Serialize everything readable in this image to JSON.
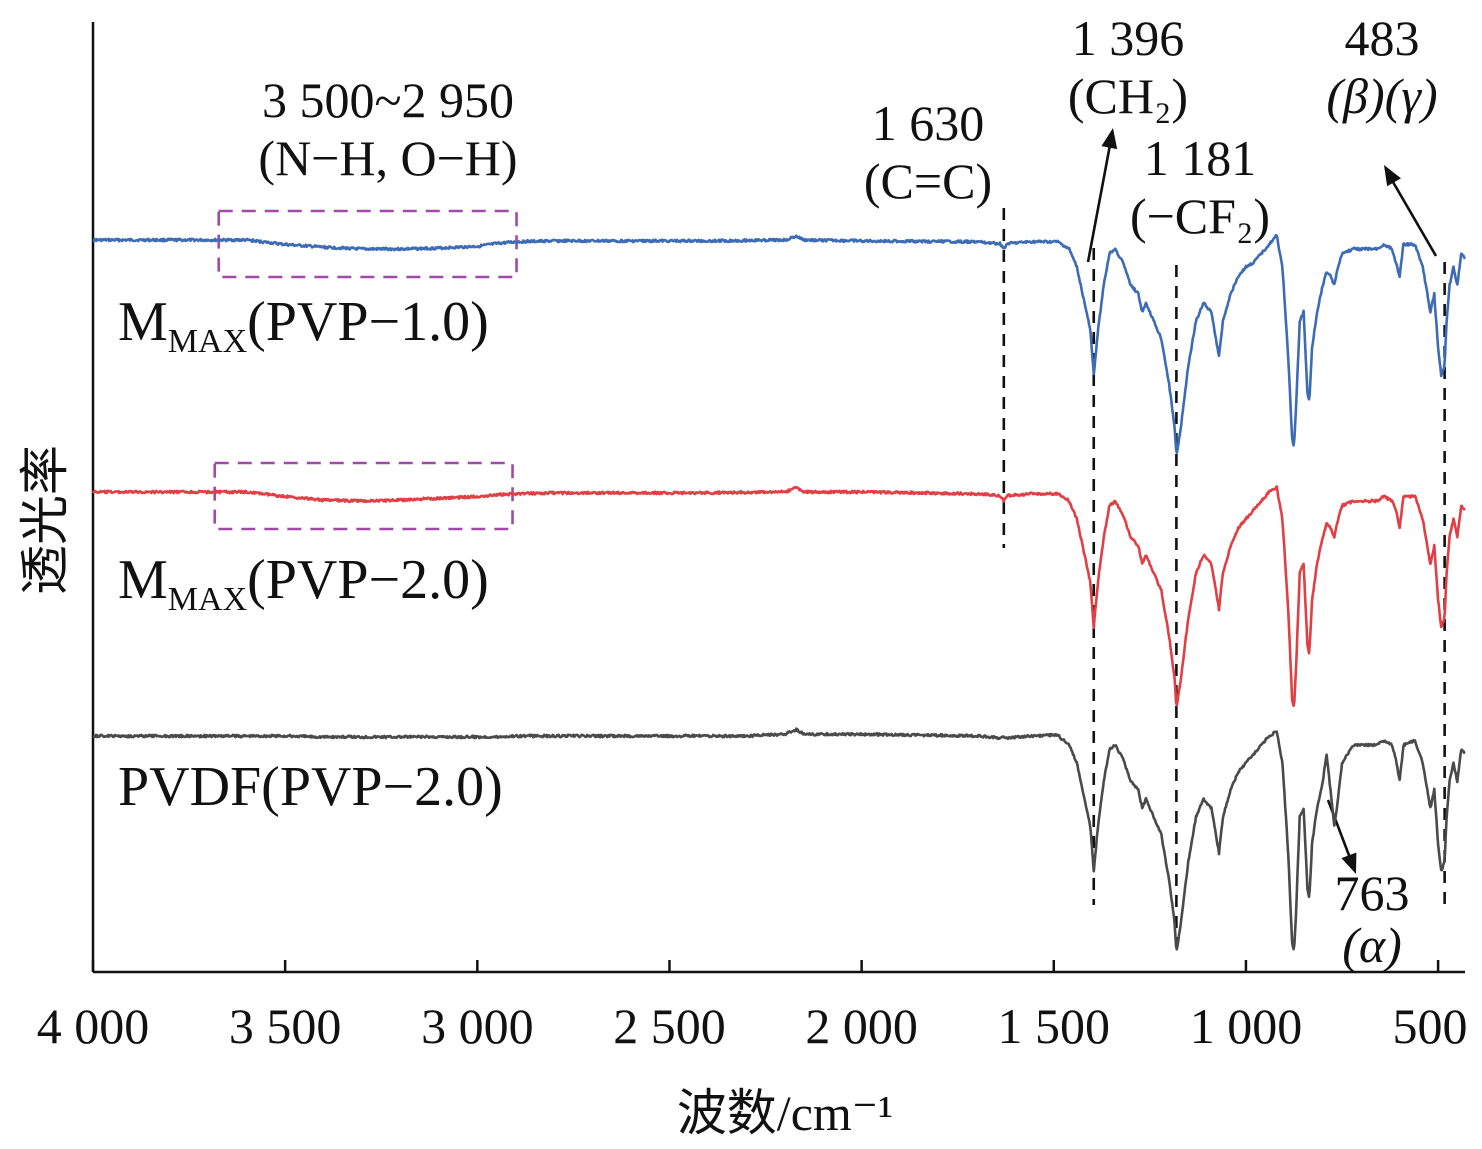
{
  "chart_data": {
    "type": "line",
    "title": "",
    "xlabel": "波数/cm⁻¹",
    "ylabel": "透光率",
    "xlim": [
      4000,
      430
    ],
    "x_reversed": true,
    "xticks": [
      4000,
      3500,
      3000,
      2500,
      2000,
      1500,
      1000,
      500
    ],
    "xtick_labels": [
      "4 000",
      "3 500",
      "3 000",
      "2 500",
      "2 000",
      "1 500",
      "1 000",
      "500"
    ],
    "y_ticks_shown": false,
    "grid": false,
    "series": [
      {
        "label_main": "M",
        "label_sub": "MAX",
        "label_rest": "(PVP−1.0)",
        "color": "#3d6cb5",
        "offset": 1.0,
        "broad_band_depth": 0.1,
        "points": [
          [
            4000,
            0
          ],
          [
            3700,
            0
          ],
          [
            3600,
            0
          ],
          [
            3500,
            0.05
          ],
          [
            3400,
            0.08
          ],
          [
            3300,
            0.1
          ],
          [
            3200,
            0.1
          ],
          [
            3100,
            0.09
          ],
          [
            3000,
            0.07
          ],
          [
            2950,
            0.04
          ],
          [
            2900,
            0.02
          ],
          [
            2800,
            0.01
          ],
          [
            2400,
            0.01
          ],
          [
            2200,
            0.0
          ],
          [
            2170,
            -0.04
          ],
          [
            2150,
            0.0
          ],
          [
            2000,
            0.01
          ],
          [
            1700,
            0.02
          ],
          [
            1640,
            0.04
          ],
          [
            1630,
            0.09
          ],
          [
            1620,
            0.04
          ],
          [
            1560,
            0.02
          ],
          [
            1490,
            0.02
          ],
          [
            1460,
            0.1
          ],
          [
            1440,
            0.3
          ],
          [
            1420,
            0.7
          ],
          [
            1405,
            1.0
          ],
          [
            1396,
            1.5
          ],
          [
            1385,
            1.0
          ],
          [
            1370,
            0.5
          ],
          [
            1355,
            0.15
          ],
          [
            1340,
            0.1
          ],
          [
            1320,
            0.25
          ],
          [
            1300,
            0.5
          ],
          [
            1280,
            0.6
          ],
          [
            1270,
            0.8
          ],
          [
            1260,
            0.7
          ],
          [
            1240,
            0.9
          ],
          [
            1220,
            1.1
          ],
          [
            1200,
            1.6
          ],
          [
            1185,
            2.1
          ],
          [
            1181,
            2.4
          ],
          [
            1170,
            2.1
          ],
          [
            1150,
            1.4
          ],
          [
            1130,
            0.9
          ],
          [
            1110,
            0.7
          ],
          [
            1090,
            0.8
          ],
          [
            1070,
            1.3
          ],
          [
            1060,
            0.9
          ],
          [
            1040,
            0.6
          ],
          [
            1020,
            0.4
          ],
          [
            1000,
            0.3
          ],
          [
            980,
            0.25
          ],
          [
            960,
            0.15
          ],
          [
            940,
            0.05
          ],
          [
            920,
            -0.05
          ],
          [
            905,
            0.3
          ],
          [
            890,
            1.3
          ],
          [
            880,
            2.2
          ],
          [
            875,
            2.3
          ],
          [
            870,
            1.9
          ],
          [
            860,
            0.9
          ],
          [
            850,
            0.8
          ],
          [
            840,
            1.7
          ],
          [
            835,
            1.8
          ],
          [
            828,
            1.2
          ],
          [
            815,
            0.8
          ],
          [
            800,
            0.5
          ],
          [
            790,
            0.35
          ],
          [
            780,
            0.4
          ],
          [
            770,
            0.5
          ],
          [
            763,
            0.35
          ],
          [
            750,
            0.15
          ],
          [
            720,
            0.1
          ],
          [
            690,
            0.1
          ],
          [
            660,
            0.1
          ],
          [
            640,
            0.05
          ],
          [
            620,
            0.1
          ],
          [
            610,
            0.25
          ],
          [
            600,
            0.4
          ],
          [
            590,
            0.05
          ],
          [
            560,
            0.05
          ],
          [
            540,
            0.3
          ],
          [
            520,
            0.8
          ],
          [
            510,
            0.6
          ],
          [
            500,
            1.2
          ],
          [
            492,
            1.5
          ],
          [
            483,
            1.4
          ],
          [
            478,
            0.9
          ],
          [
            470,
            0.5
          ],
          [
            460,
            0.3
          ],
          [
            450,
            0.5
          ],
          [
            440,
            0.15
          ],
          [
            430,
            0.2
          ]
        ]
      },
      {
        "label_main": "M",
        "label_sub": "MAX",
        "label_rest": "(PVP−2.0)",
        "color": "#e04045",
        "offset": 0.0,
        "broad_band_depth": 0.1,
        "points": [
          [
            4000,
            0
          ],
          [
            3700,
            0
          ],
          [
            3600,
            0
          ],
          [
            3500,
            0.05
          ],
          [
            3400,
            0.09
          ],
          [
            3300,
            0.1
          ],
          [
            3200,
            0.09
          ],
          [
            3100,
            0.07
          ],
          [
            3000,
            0.05
          ],
          [
            2950,
            0.03
          ],
          [
            2900,
            0.02
          ],
          [
            2800,
            0.01
          ],
          [
            2400,
            0.01
          ],
          [
            2200,
            0.0
          ],
          [
            2170,
            -0.05
          ],
          [
            2150,
            0.0
          ],
          [
            2000,
            0.0
          ],
          [
            1700,
            0.02
          ],
          [
            1640,
            0.04
          ],
          [
            1630,
            0.1
          ],
          [
            1620,
            0.04
          ],
          [
            1560,
            0.02
          ],
          [
            1490,
            0.02
          ],
          [
            1460,
            0.1
          ],
          [
            1440,
            0.3
          ],
          [
            1420,
            0.7
          ],
          [
            1405,
            1.0
          ],
          [
            1396,
            1.5
          ],
          [
            1385,
            1.0
          ],
          [
            1370,
            0.5
          ],
          [
            1355,
            0.15
          ],
          [
            1340,
            0.1
          ],
          [
            1320,
            0.25
          ],
          [
            1300,
            0.5
          ],
          [
            1280,
            0.6
          ],
          [
            1270,
            0.8
          ],
          [
            1260,
            0.7
          ],
          [
            1240,
            0.9
          ],
          [
            1220,
            1.1
          ],
          [
            1200,
            1.6
          ],
          [
            1185,
            2.1
          ],
          [
            1181,
            2.4
          ],
          [
            1170,
            2.1
          ],
          [
            1150,
            1.4
          ],
          [
            1130,
            0.9
          ],
          [
            1110,
            0.7
          ],
          [
            1090,
            0.8
          ],
          [
            1070,
            1.3
          ],
          [
            1060,
            0.9
          ],
          [
            1040,
            0.6
          ],
          [
            1020,
            0.4
          ],
          [
            1000,
            0.3
          ],
          [
            980,
            0.2
          ],
          [
            960,
            0.1
          ],
          [
            940,
            0.0
          ],
          [
            920,
            -0.05
          ],
          [
            905,
            0.3
          ],
          [
            890,
            1.3
          ],
          [
            880,
            2.3
          ],
          [
            875,
            2.4
          ],
          [
            870,
            2.0
          ],
          [
            860,
            0.9
          ],
          [
            850,
            0.8
          ],
          [
            840,
            1.7
          ],
          [
            835,
            1.8
          ],
          [
            828,
            1.2
          ],
          [
            815,
            0.8
          ],
          [
            800,
            0.5
          ],
          [
            790,
            0.35
          ],
          [
            780,
            0.4
          ],
          [
            770,
            0.5
          ],
          [
            763,
            0.35
          ],
          [
            750,
            0.15
          ],
          [
            720,
            0.1
          ],
          [
            690,
            0.1
          ],
          [
            660,
            0.1
          ],
          [
            640,
            0.05
          ],
          [
            620,
            0.1
          ],
          [
            610,
            0.2
          ],
          [
            600,
            0.4
          ],
          [
            590,
            0.05
          ],
          [
            560,
            0.05
          ],
          [
            540,
            0.3
          ],
          [
            520,
            0.8
          ],
          [
            510,
            0.6
          ],
          [
            500,
            1.2
          ],
          [
            492,
            1.5
          ],
          [
            483,
            1.4
          ],
          [
            478,
            0.9
          ],
          [
            470,
            0.5
          ],
          [
            460,
            0.3
          ],
          [
            450,
            0.5
          ],
          [
            440,
            0.15
          ],
          [
            430,
            0.2
          ]
        ]
      },
      {
        "label_main": "PVDF(PVP−2.0)",
        "label_sub": "",
        "label_rest": "",
        "color": "#4a4a4a",
        "offset": -1.0,
        "broad_band_depth": 0.0,
        "points": [
          [
            4000,
            0
          ],
          [
            3700,
            0
          ],
          [
            3600,
            0
          ],
          [
            3500,
            0.0
          ],
          [
            3400,
            0.01
          ],
          [
            3300,
            0.01
          ],
          [
            3200,
            0.01
          ],
          [
            3100,
            0.01
          ],
          [
            3000,
            0.01
          ],
          [
            2950,
            0.01
          ],
          [
            2900,
            0.0
          ],
          [
            2800,
            0.0
          ],
          [
            2400,
            0.0
          ],
          [
            2300,
            0.0
          ],
          [
            2200,
            -0.02
          ],
          [
            2170,
            -0.07
          ],
          [
            2150,
            -0.02
          ],
          [
            2000,
            -0.02
          ],
          [
            1700,
            0.0
          ],
          [
            1640,
            0.02
          ],
          [
            1630,
            0.02
          ],
          [
            1620,
            0.02
          ],
          [
            1560,
            0.0
          ],
          [
            1490,
            -0.01
          ],
          [
            1460,
            0.1
          ],
          [
            1440,
            0.3
          ],
          [
            1420,
            0.7
          ],
          [
            1405,
            1.0
          ],
          [
            1396,
            1.5
          ],
          [
            1385,
            1.0
          ],
          [
            1370,
            0.5
          ],
          [
            1355,
            0.15
          ],
          [
            1340,
            0.1
          ],
          [
            1320,
            0.25
          ],
          [
            1300,
            0.5
          ],
          [
            1280,
            0.6
          ],
          [
            1270,
            0.8
          ],
          [
            1260,
            0.7
          ],
          [
            1240,
            0.9
          ],
          [
            1220,
            1.1
          ],
          [
            1200,
            1.6
          ],
          [
            1185,
            2.1
          ],
          [
            1181,
            2.4
          ],
          [
            1170,
            2.1
          ],
          [
            1150,
            1.4
          ],
          [
            1130,
            0.9
          ],
          [
            1110,
            0.7
          ],
          [
            1090,
            0.8
          ],
          [
            1070,
            1.3
          ],
          [
            1060,
            0.9
          ],
          [
            1040,
            0.6
          ],
          [
            1020,
            0.4
          ],
          [
            1000,
            0.3
          ],
          [
            980,
            0.2
          ],
          [
            960,
            0.1
          ],
          [
            940,
            0.0
          ],
          [
            920,
            -0.05
          ],
          [
            905,
            0.3
          ],
          [
            890,
            1.3
          ],
          [
            880,
            2.3
          ],
          [
            875,
            2.4
          ],
          [
            870,
            2.0
          ],
          [
            860,
            0.9
          ],
          [
            850,
            0.8
          ],
          [
            840,
            1.7
          ],
          [
            835,
            1.8
          ],
          [
            828,
            1.2
          ],
          [
            815,
            0.8
          ],
          [
            800,
            0.5
          ],
          [
            790,
            0.2
          ],
          [
            780,
            0.6
          ],
          [
            770,
            1.0
          ],
          [
            763,
            0.8
          ],
          [
            750,
            0.3
          ],
          [
            720,
            0.1
          ],
          [
            690,
            0.1
          ],
          [
            660,
            0.1
          ],
          [
            640,
            0.05
          ],
          [
            620,
            0.1
          ],
          [
            610,
            0.25
          ],
          [
            600,
            0.5
          ],
          [
            590,
            0.1
          ],
          [
            560,
            0.05
          ],
          [
            540,
            0.3
          ],
          [
            520,
            0.8
          ],
          [
            510,
            0.6
          ],
          [
            500,
            1.2
          ],
          [
            492,
            1.5
          ],
          [
            483,
            1.4
          ],
          [
            478,
            0.9
          ],
          [
            470,
            0.5
          ],
          [
            460,
            0.3
          ],
          [
            450,
            0.5
          ],
          [
            440,
            0.15
          ],
          [
            430,
            0.2
          ]
        ]
      }
    ],
    "annotations": [
      {
        "line1": "3 500~2 950",
        "line2": "(N−H, O−H)",
        "x_range": [
          3600,
          2950
        ],
        "kind": "box"
      },
      {
        "line1": "1 630",
        "line2": "(C=C)",
        "x": 1630,
        "kind": "vline"
      },
      {
        "line1": "1 396",
        "line2": "(CH₂)",
        "x": 1396,
        "kind": "vline-arrow"
      },
      {
        "line1": "1 181",
        "line2": "(−CF₂)",
        "x": 1181,
        "kind": "vline"
      },
      {
        "line1": "483",
        "line2": "(β)(γ)",
        "x": 483,
        "kind": "vline-arrow"
      },
      {
        "line1": "763",
        "line2": "(α)",
        "x": 763,
        "kind": "arrow"
      }
    ],
    "colors": {
      "box": "#a04aa8",
      "axis": "#111111",
      "ref_line": "#111111"
    }
  }
}
